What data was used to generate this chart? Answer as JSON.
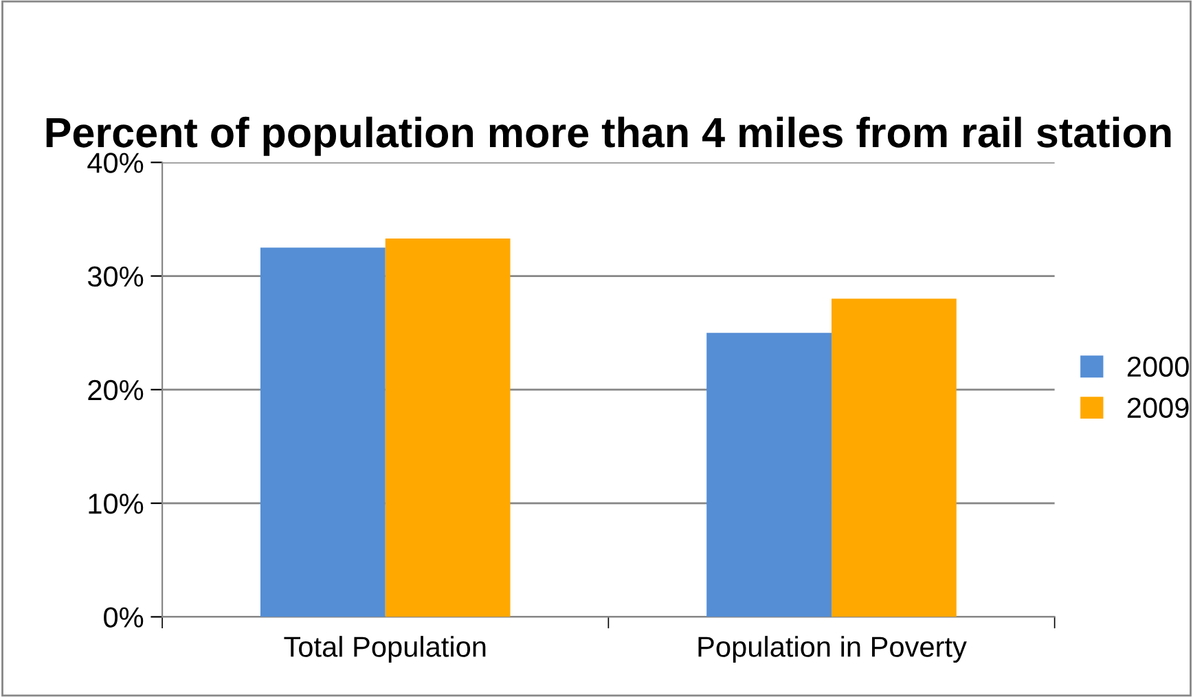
{
  "chart_data": {
    "type": "bar",
    "title": "Percent of population more than 4 miles from rail station",
    "categories": [
      "Total Population",
      "Population in Poverty"
    ],
    "series": [
      {
        "name": "2000",
        "color": "#558ed5",
        "values": [
          32.5,
          25.0
        ]
      },
      {
        "name": "2009",
        "color": "#ffa800",
        "values": [
          33.3,
          28.0
        ]
      }
    ],
    "ylim": [
      0,
      40
    ],
    "yticks": [
      {
        "value": 0,
        "label": "0%"
      },
      {
        "value": 10,
        "label": "10%"
      },
      {
        "value": 20,
        "label": "20%"
      },
      {
        "value": 30,
        "label": "30%"
      },
      {
        "value": 40,
        "label": "40%"
      }
    ],
    "grid": "y",
    "legend": "right"
  }
}
